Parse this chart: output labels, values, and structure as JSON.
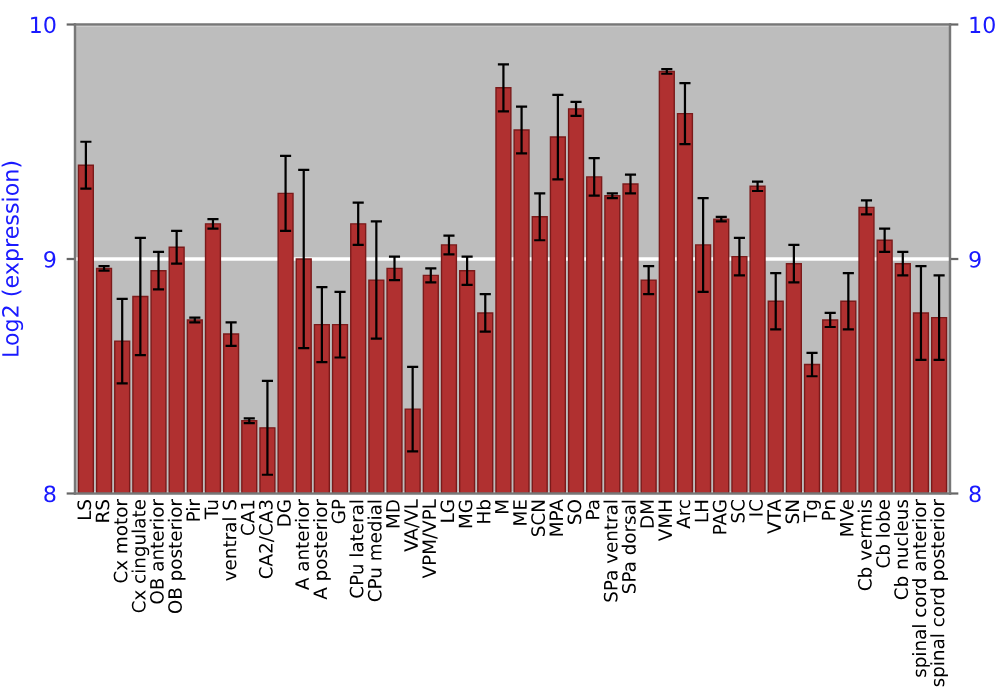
{
  "chart_data": {
    "type": "bar",
    "ylabel": "Log2 (expression)",
    "categories": [
      "LS",
      "RS",
      "Cx motor",
      "Cx cingulate",
      "OB anterior",
      "OB posterior",
      "Pir",
      "Tu",
      "ventral S",
      "CA1",
      "CA2/CA3",
      "DG",
      "A anterior",
      "A posterior",
      "GP",
      "CPu lateral",
      "CPu medial",
      "MD",
      "VA/VL",
      "VPM/VPL",
      "LG",
      "MG",
      "Hb",
      "M",
      "ME",
      "SCN",
      "MPA",
      "SO",
      "Pa",
      "SPa ventral",
      "SPa dorsal",
      "DM",
      "VMH",
      "Arc",
      "LH",
      "PAG",
      "SC",
      "IC",
      "VTA",
      "SN",
      "Tg",
      "Pn",
      "MVe",
      "Cb vermis",
      "Cb lobe",
      "Cb nucleus",
      "spinal cord anterior",
      "spinal cord posterior"
    ],
    "values": [
      9.4,
      8.96,
      8.65,
      8.84,
      8.95,
      9.05,
      8.74,
      9.15,
      8.68,
      8.31,
      8.28,
      9.28,
      9.0,
      8.72,
      8.72,
      9.15,
      8.91,
      8.96,
      8.36,
      8.93,
      9.06,
      8.95,
      8.77,
      9.73,
      9.55,
      9.18,
      9.52,
      9.64,
      9.35,
      9.27,
      9.32,
      8.91,
      9.8,
      9.62,
      9.06,
      9.17,
      9.01,
      9.31,
      8.82,
      8.98,
      8.55,
      8.74,
      8.82,
      9.22,
      9.08,
      8.98,
      8.77,
      8.75
    ],
    "errors": [
      0.1,
      0.01,
      0.18,
      0.25,
      0.08,
      0.07,
      0.01,
      0.02,
      0.05,
      0.01,
      0.2,
      0.16,
      0.38,
      0.16,
      0.14,
      0.09,
      0.25,
      0.05,
      0.18,
      0.03,
      0.04,
      0.06,
      0.08,
      0.1,
      0.1,
      0.1,
      0.18,
      0.03,
      0.08,
      0.01,
      0.04,
      0.06,
      0.01,
      0.13,
      0.2,
      0.01,
      0.08,
      0.02,
      0.12,
      0.08,
      0.05,
      0.03,
      0.12,
      0.03,
      0.05,
      0.05,
      0.2,
      0.18
    ],
    "color": "#b03030",
    "ylim": [
      8,
      10
    ],
    "yticks": [
      8,
      9,
      10
    ],
    "y2lim": [
      8,
      10
    ],
    "y2ticks": [
      8,
      9,
      10
    ],
    "grid": "y"
  }
}
